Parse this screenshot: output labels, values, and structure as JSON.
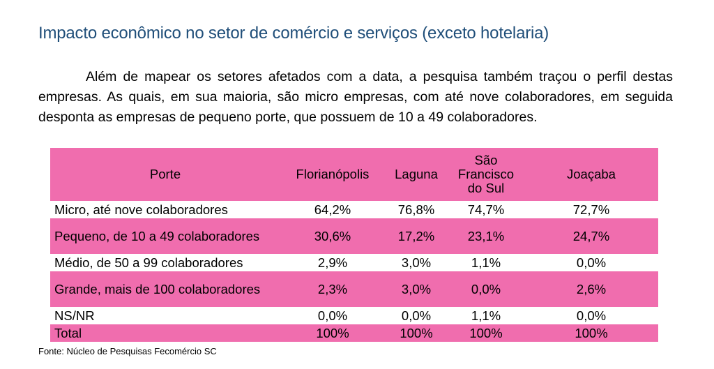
{
  "heading": "Impacto econômico no setor de comércio e serviços (exceto hotelaria)",
  "paragraph": "Além de mapear os setores afetados com a data, a pesquisa também traçou o perfil destas empresas. As quais, em sua maioria, são micro empresas, com até nove colaboradores, em seguida desponta as empresas de pequeno porte, que possuem de 10 a 49 colaboradores.",
  "table": {
    "headers": [
      "Porte",
      "Florianópolis",
      "Laguna",
      "São Francisco do Sul",
      "Joaçaba"
    ],
    "rows": [
      [
        "Micro, até nove colaboradores",
        "64,2%",
        "76,8%",
        "74,7%",
        "72,7%"
      ],
      [
        "Pequeno, de 10 a 49 colaboradores",
        "30,6%",
        "17,2%",
        "23,1%",
        "24,7%"
      ],
      [
        "Médio, de 50 a 99 colaboradores",
        "2,9%",
        "3,0%",
        "1,1%",
        "0,0%"
      ],
      [
        "Grande, mais de 100 colaboradores",
        "2,3%",
        "3,0%",
        "0,0%",
        "2,6%"
      ],
      [
        "NS/NR",
        "0,0%",
        "0,0%",
        "1,1%",
        "0,0%"
      ],
      [
        "Total",
        "100%",
        "100%",
        "100%",
        "100%"
      ]
    ]
  },
  "source": "Fonte: Núcleo de Pesquisas Fecomércio SC",
  "colors": {
    "heading": "#1F4E79",
    "row_highlight": "#F06DAE"
  }
}
